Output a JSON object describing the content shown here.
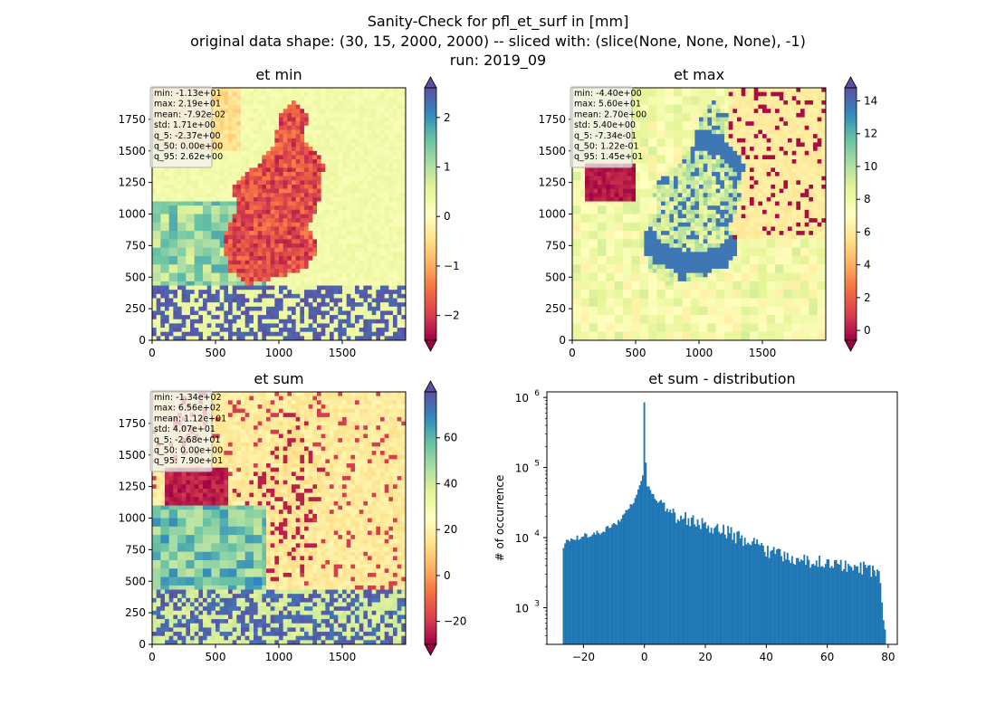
{
  "figure": {
    "title_lines": [
      "Sanity-Check for pfl_et_surf in [mm]",
      "original data shape: (30, 15, 2000, 2000) -- sliced with: (slice(None, None, None), -1)",
      "run: 2019_09"
    ]
  },
  "colors": {
    "spectral": [
      "#9e0142",
      "#d53e4f",
      "#f46d43",
      "#fdae61",
      "#fee08b",
      "#ffffbf",
      "#e6f598",
      "#abdda4",
      "#66c2a5",
      "#3288bd",
      "#5e4fa2"
    ],
    "hist_bar": "#1f77b4",
    "stats_box_bg": "#f2f2f2",
    "stats_box_border": "#b0b0b0"
  },
  "chart_data": [
    {
      "type": "heatmap",
      "title": "et min",
      "colormap": "Spectral",
      "xlim": [
        0,
        2000
      ],
      "ylim": [
        0,
        2000
      ],
      "x_ticks": [
        0,
        500,
        1000,
        1500
      ],
      "y_ticks": [
        0,
        250,
        500,
        750,
        1000,
        1250,
        1500,
        1750
      ],
      "colorbar": {
        "vmin": -2.5,
        "vmax": 2.6,
        "ticks": [
          -2,
          -1,
          0,
          1,
          2
        ],
        "tick_labels": [
          "−2",
          "−1",
          "0",
          "1",
          "2"
        ],
        "extend": "both"
      },
      "stats": [
        "min: -1.13e+01",
        "max: 2.19e+01",
        "mean: -7.92e-02",
        "std: 1.71e+00",
        "q_5: -2.37e+00",
        "q_50: 0.00e+00",
        "q_95: 2.62e+00"
      ]
    },
    {
      "type": "heatmap",
      "title": "et max",
      "colormap": "Spectral",
      "xlim": [
        0,
        2000
      ],
      "ylim": [
        0,
        2000
      ],
      "x_ticks": [
        0,
        500,
        1000,
        1500
      ],
      "y_ticks": [
        0,
        250,
        500,
        750,
        1000,
        1250,
        1500,
        1750
      ],
      "colorbar": {
        "vmin": -0.6,
        "vmax": 14.8,
        "ticks": [
          0,
          2,
          4,
          6,
          8,
          10,
          12,
          14
        ],
        "tick_labels": [
          "0",
          "2",
          "4",
          "6",
          "8",
          "10",
          "12",
          "14"
        ],
        "extend": "both"
      },
      "stats": [
        "min: -4.40e+00",
        "max: 5.60e+01",
        "mean: 2.70e+00",
        "std: 5.40e+00",
        "q_5: -7.34e-01",
        "q_50: 1.22e-01",
        "q_95: 1.45e+01"
      ]
    },
    {
      "type": "heatmap",
      "title": "et sum",
      "colormap": "Spectral",
      "xlim": [
        0,
        2000
      ],
      "ylim": [
        0,
        2000
      ],
      "x_ticks": [
        0,
        500,
        1000,
        1500
      ],
      "y_ticks": [
        0,
        250,
        500,
        750,
        1000,
        1250,
        1500,
        1750
      ],
      "colorbar": {
        "vmin": -30,
        "vmax": 80,
        "ticks": [
          -20,
          0,
          20,
          40,
          60
        ],
        "tick_labels": [
          "−20",
          "0",
          "20",
          "40",
          "60"
        ],
        "extend": "both"
      },
      "stats": [
        "min: -1.34e+02",
        "max: 6.56e+02",
        "mean: 1.12e+01",
        "std: 4.07e+01",
        "q_5: -2.68e+01",
        "q_50: 0.00e+00",
        "q_95: 7.90e+01"
      ]
    },
    {
      "type": "bar",
      "title": "et sum - distribution",
      "ylabel": "# of occurrence",
      "xlabel": "",
      "yscale": "log",
      "xlim": [
        -32,
        83
      ],
      "ylim": [
        300,
        1200000
      ],
      "x_ticks": [
        -20,
        0,
        20,
        40,
        60,
        80
      ],
      "x_tick_labels": [
        "−20",
        "0",
        "20",
        "40",
        "60",
        "80"
      ],
      "y_ticks": [
        1000,
        10000,
        100000,
        1000000
      ],
      "bin_range": [
        -26.8,
        79.0
      ],
      "bin_width": 0.5,
      "profile": [
        [
          -26.8,
          7500
        ],
        [
          -25,
          9200
        ],
        [
          -22,
          10000
        ],
        [
          -18,
          11000
        ],
        [
          -14,
          12500
        ],
        [
          -10,
          15000
        ],
        [
          -7,
          20000
        ],
        [
          -5,
          26000
        ],
        [
          -3,
          35000
        ],
        [
          -2,
          48000
        ],
        [
          -1,
          60000
        ],
        [
          -0.5,
          72000
        ],
        [
          0,
          850000
        ],
        [
          0.5,
          90000
        ],
        [
          1,
          55000
        ],
        [
          2,
          45000
        ],
        [
          3,
          38000
        ],
        [
          5,
          30000
        ],
        [
          8,
          24000
        ],
        [
          12,
          20000
        ],
        [
          16,
          18000
        ],
        [
          20,
          16000
        ],
        [
          24,
          14500
        ],
        [
          28,
          12000
        ],
        [
          32,
          10000
        ],
        [
          36,
          8500
        ],
        [
          40,
          7000
        ],
        [
          45,
          6000
        ],
        [
          50,
          5200
        ],
        [
          55,
          4700
        ],
        [
          60,
          4500
        ],
        [
          65,
          4300
        ],
        [
          70,
          4000
        ],
        [
          74,
          3600
        ],
        [
          77,
          3100
        ],
        [
          79,
          450
        ]
      ],
      "spike": {
        "x": 0,
        "value": 850000
      }
    }
  ]
}
